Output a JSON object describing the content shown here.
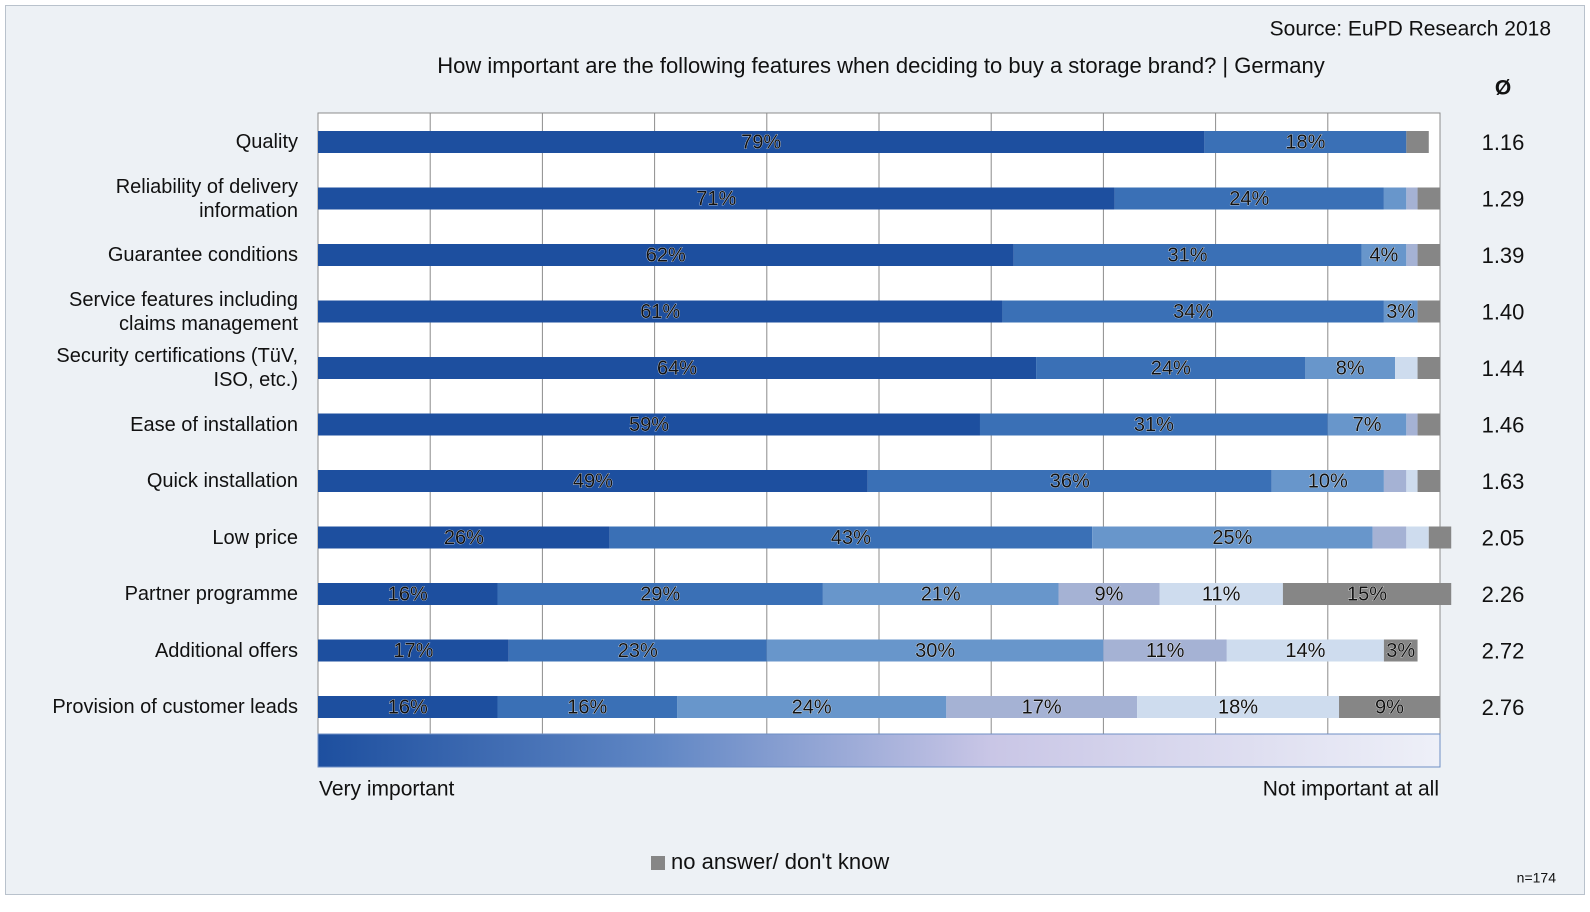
{
  "chart_data": {
    "type": "bar",
    "orientation": "horizontal",
    "stacked": true,
    "source": "Source: EuPD Research 2018",
    "title": "How important are the following features when deciding to buy a storage brand? | Germany",
    "average_header": "Ø",
    "categories": [
      "Quality",
      "Reliability of delivery information",
      "Guarantee conditions",
      "Service features including claims management",
      "Security certifications (TüV, ISO, etc.)",
      "Ease of installation",
      "Quick installation",
      "Low price",
      "Partner programme",
      "Additional offers",
      "Provision of customer leads"
    ],
    "averages": [
      "1.16",
      "1.29",
      "1.39",
      "1.40",
      "1.44",
      "1.46",
      "1.63",
      "2.05",
      "2.26",
      "2.72",
      "2.76"
    ],
    "series": [
      {
        "color": "#1d4f9f",
        "values": [
          79,
          71,
          62,
          61,
          64,
          59,
          49,
          26,
          16,
          17,
          16
        ],
        "value_labels": [
          "79%",
          "71%",
          "62%",
          "61%",
          "64%",
          "59%",
          "49%",
          "26%",
          "16%",
          "17%",
          "16%"
        ]
      },
      {
        "color": "#3a70b6",
        "values": [
          18,
          24,
          31,
          34,
          24,
          31,
          36,
          43,
          29,
          23,
          16
        ],
        "value_labels": [
          "18%",
          "24%",
          "31%",
          "34%",
          "24%",
          "31%",
          "36%",
          "43%",
          "29%",
          "23%",
          "16%"
        ]
      },
      {
        "color": "#6896cb",
        "values": [
          0,
          2,
          4,
          3,
          8,
          7,
          10,
          25,
          21,
          30,
          24
        ],
        "value_labels": [
          null,
          null,
          "4%",
          "3%",
          "8%",
          "7%",
          "10%",
          "25%",
          "21%",
          "30%",
          "24%"
        ]
      },
      {
        "color": "#a5b2d4",
        "values": [
          0,
          1,
          1,
          0,
          0,
          1,
          2,
          3,
          9,
          11,
          17
        ],
        "value_labels": [
          null,
          null,
          null,
          null,
          null,
          null,
          null,
          null,
          "9%",
          "11%",
          "17%"
        ]
      },
      {
        "color": "#cedcee",
        "values": [
          0,
          0,
          0,
          0,
          2,
          0,
          1,
          2,
          11,
          14,
          18
        ],
        "value_labels": [
          null,
          null,
          null,
          null,
          null,
          null,
          null,
          null,
          "11%",
          "14%",
          "18%"
        ]
      },
      {
        "name": "no answer/ don't know",
        "color": "#868686",
        "values": [
          2,
          2,
          2,
          2,
          2,
          2,
          2,
          2,
          15,
          3,
          9
        ],
        "value_labels": [
          null,
          null,
          null,
          null,
          null,
          null,
          null,
          null,
          "15%",
          "3%",
          "9%"
        ]
      }
    ],
    "xlim": [
      0,
      100
    ],
    "xticks": [
      0,
      10,
      20,
      30,
      40,
      50,
      60,
      70,
      80,
      90,
      100
    ],
    "grid": true,
    "scale_labels": [
      "Very important",
      "Not important at all"
    ],
    "note": "n=174"
  }
}
